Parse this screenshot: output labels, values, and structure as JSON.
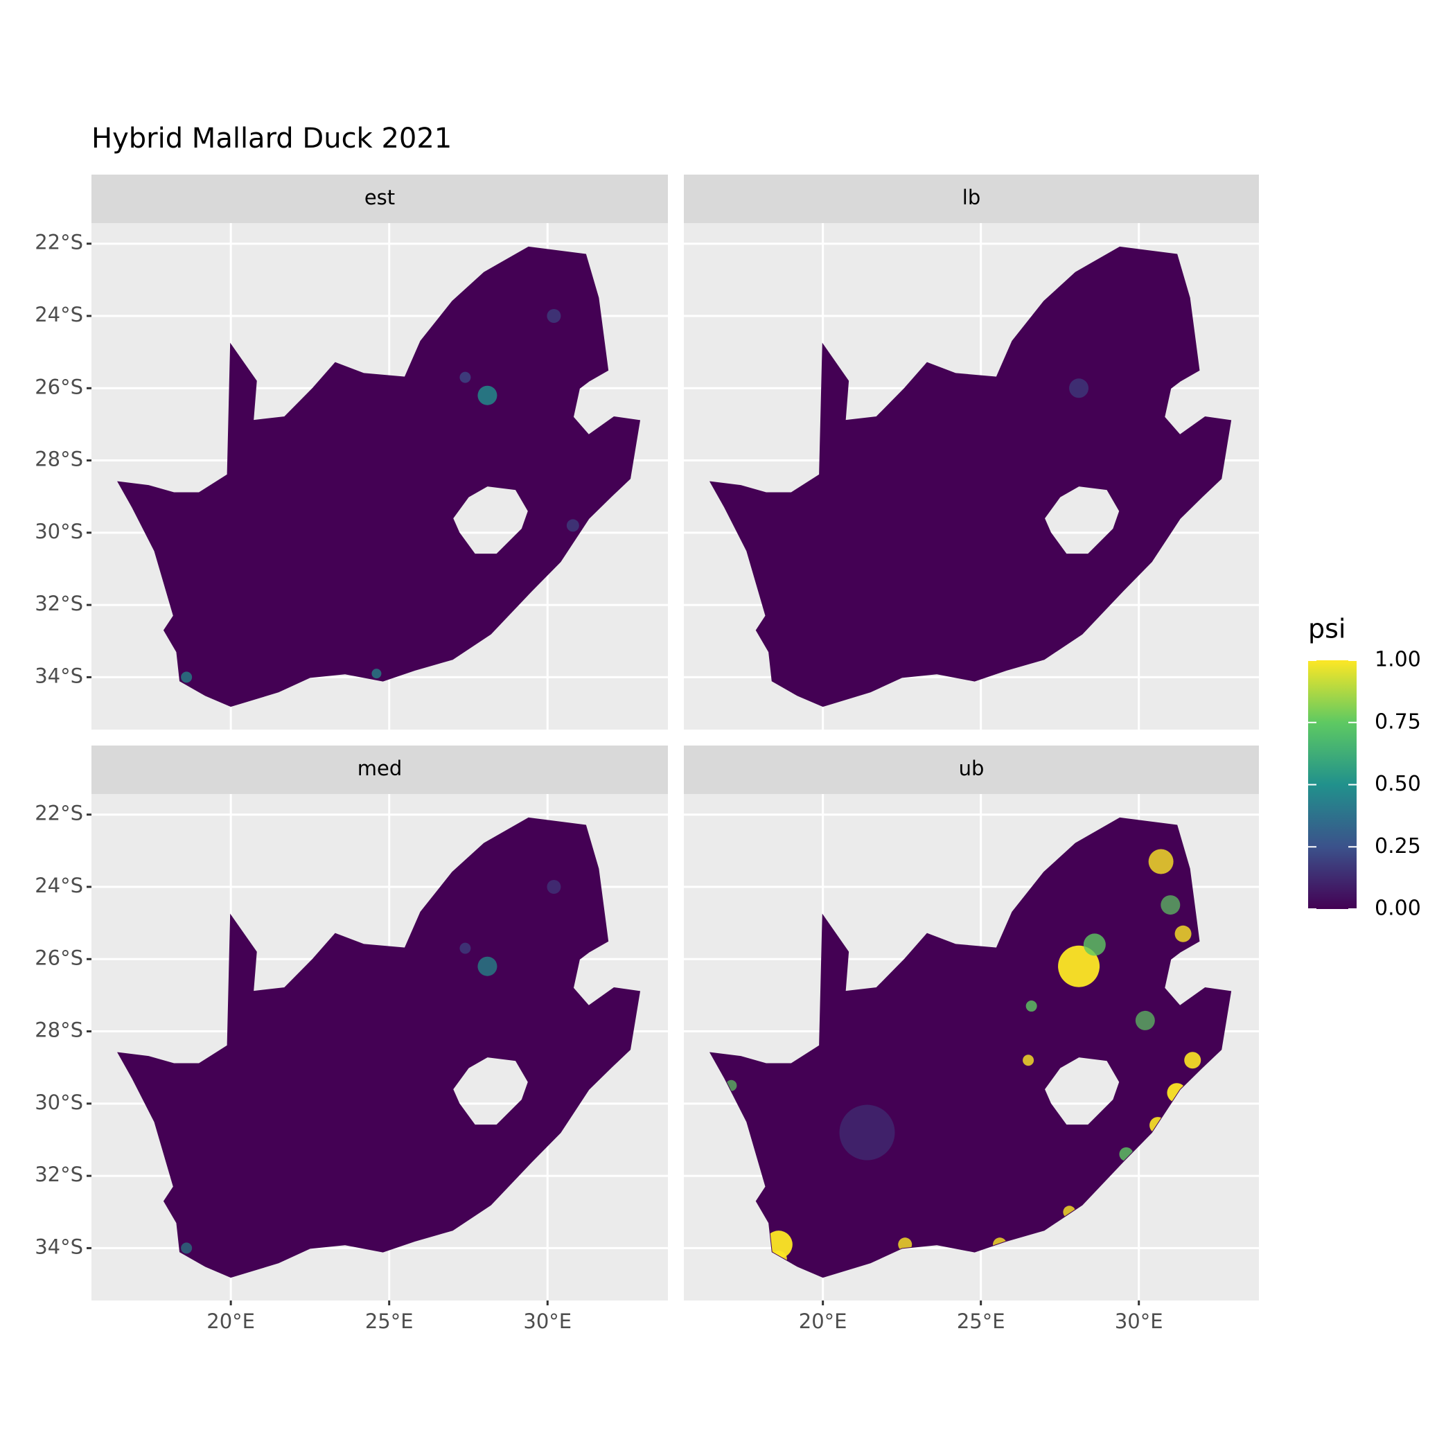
{
  "chart_data": {
    "type": "raster",
    "title": "Hybrid Mallard Duck 2021",
    "facets": [
      "est",
      "lb",
      "med",
      "ub"
    ],
    "xlim": [
      15.6,
      33.8
    ],
    "ylim": [
      -35.45,
      -21.43
    ],
    "xticks": [
      {
        "value": 20,
        "label": "20°E"
      },
      {
        "value": 25,
        "label": "25°E"
      },
      {
        "value": 30,
        "label": "30°E"
      }
    ],
    "yticks": [
      {
        "value": -22,
        "label": "22°S"
      },
      {
        "value": -24,
        "label": "24°S"
      },
      {
        "value": -26,
        "label": "26°S"
      },
      {
        "value": -28,
        "label": "28°S"
      },
      {
        "value": -30,
        "label": "30°S"
      },
      {
        "value": -32,
        "label": "32°S"
      },
      {
        "value": -34,
        "label": "34°S"
      }
    ],
    "grid": true,
    "legend": {
      "title": "psi",
      "lim": [
        0,
        1
      ],
      "ticks": [
        {
          "value": 0,
          "label": "0.00"
        },
        {
          "value": 0.25,
          "label": "0.25"
        },
        {
          "value": 0.5,
          "label": "0.50"
        },
        {
          "value": 0.75,
          "label": "0.75"
        },
        {
          "value": 1,
          "label": "1.00"
        }
      ],
      "colors": [
        "#440154",
        "#3b528b",
        "#21918c",
        "#5ec962",
        "#fde725"
      ]
    }
  }
}
